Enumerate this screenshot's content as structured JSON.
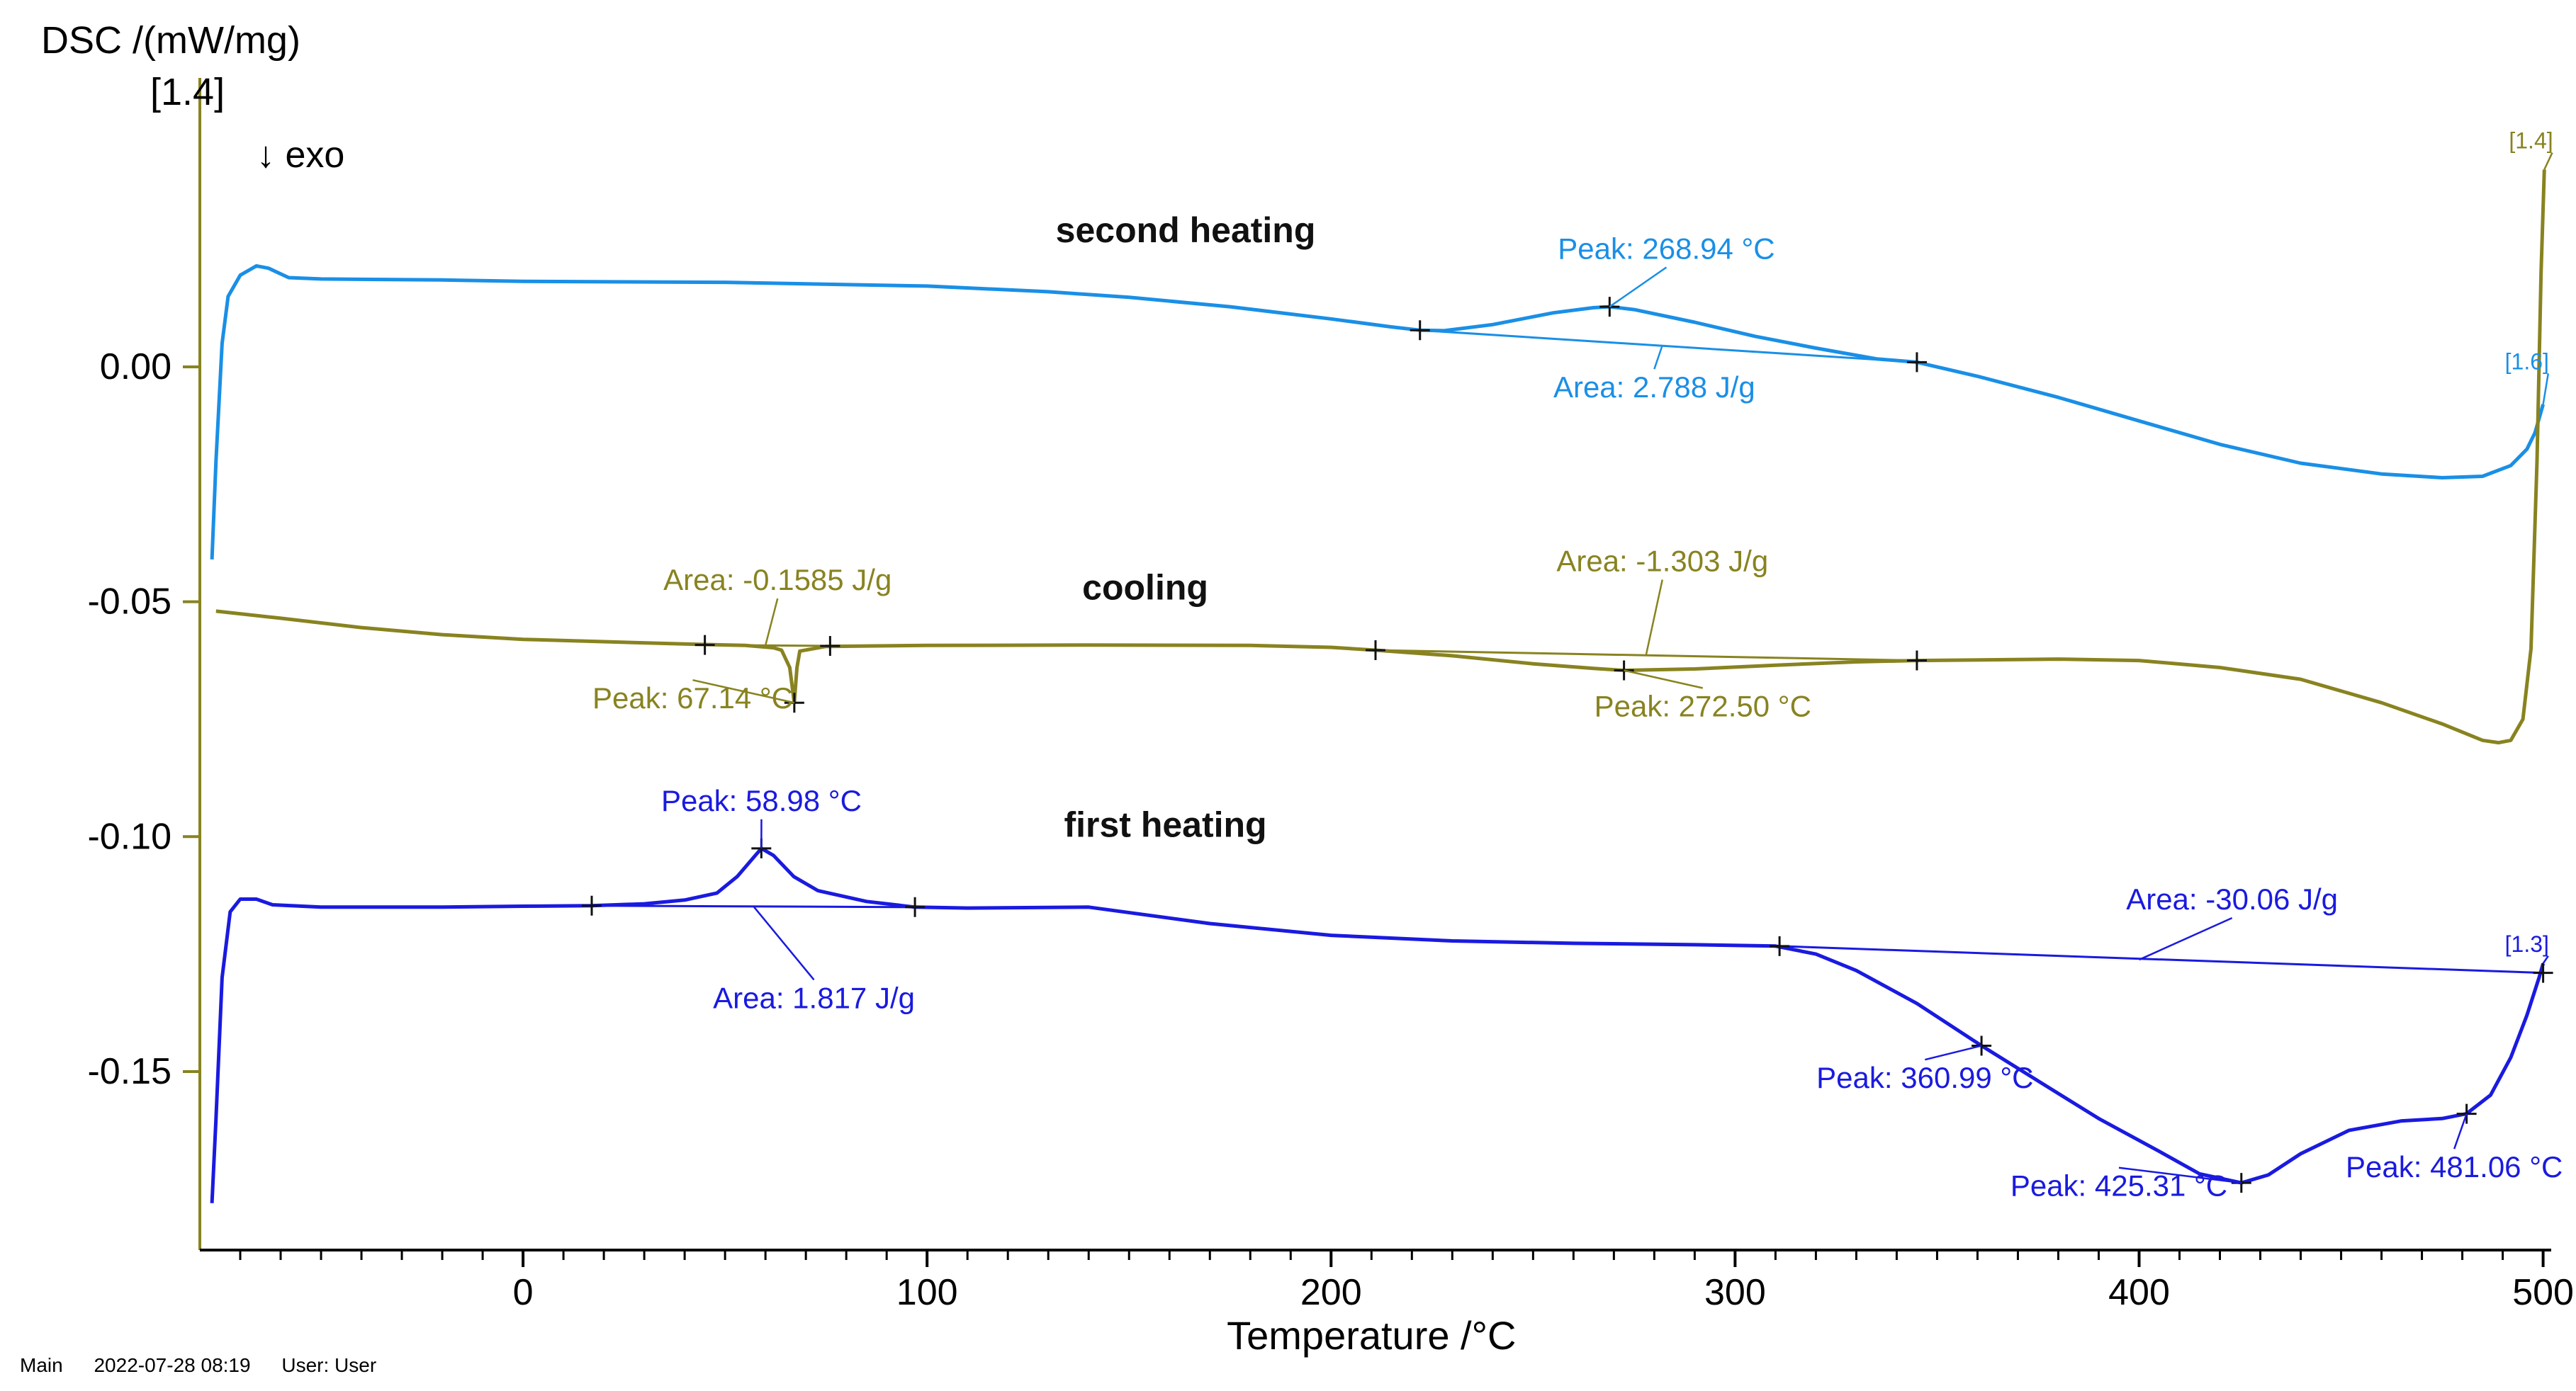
{
  "chart_data": {
    "type": "line",
    "title": "",
    "ylabel": "DSC /(mW/mg)",
    "ylabel_scale": "[1.4]",
    "xlabel": "Temperature /°C",
    "exo_label": "↓  exo",
    "xlim": [
      -80,
      502
    ],
    "ylim": [
      -0.188,
      0.06
    ],
    "xticks": [
      0,
      100,
      200,
      300,
      400,
      500
    ],
    "xtick_labels": [
      "0",
      "100",
      "200",
      "300",
      "400",
      "500"
    ],
    "yticks": [
      0.0,
      -0.05,
      -0.1,
      -0.15
    ],
    "ytick_labels": [
      "0.00",
      "-0.05",
      "-0.10",
      "-0.15"
    ],
    "grid": false,
    "series": [
      {
        "name": "second heating",
        "label_at": [
          164,
          0.0265
        ],
        "color": "#1a8fe6",
        "end_tag": "[1.6]",
        "points": [
          [
            -77,
            -0.041
          ],
          [
            -76,
            -0.02
          ],
          [
            -74.5,
            0.005
          ],
          [
            -73,
            0.015
          ],
          [
            -70,
            0.0195
          ],
          [
            -66,
            0.0215
          ],
          [
            -63,
            0.021
          ],
          [
            -58,
            0.019
          ],
          [
            -50,
            0.0187
          ],
          [
            -20,
            0.0185
          ],
          [
            0,
            0.0182
          ],
          [
            50,
            0.018
          ],
          [
            100,
            0.0172
          ],
          [
            130,
            0.016
          ],
          [
            150,
            0.0148
          ],
          [
            175,
            0.0128
          ],
          [
            200,
            0.0102
          ],
          [
            215,
            0.0085
          ],
          [
            222,
            0.0078
          ],
          [
            228,
            0.0077
          ],
          [
            240,
            0.009
          ],
          [
            255,
            0.0115
          ],
          [
            265,
            0.0126
          ],
          [
            269,
            0.0128
          ],
          [
            275,
            0.0122
          ],
          [
            290,
            0.0095
          ],
          [
            305,
            0.0065
          ],
          [
            320,
            0.004
          ],
          [
            335,
            0.0017
          ],
          [
            345,
            0.001
          ],
          [
            360,
            -0.002
          ],
          [
            380,
            -0.0065
          ],
          [
            400,
            -0.0115
          ],
          [
            420,
            -0.0165
          ],
          [
            440,
            -0.0205
          ],
          [
            460,
            -0.0228
          ],
          [
            475,
            -0.0236
          ],
          [
            485,
            -0.0233
          ],
          [
            492,
            -0.021
          ],
          [
            496,
            -0.0175
          ],
          [
            498,
            -0.014
          ],
          [
            500,
            -0.008
          ]
        ]
      },
      {
        "name": "cooling",
        "label_at": [
          154,
          -0.0495
        ],
        "color": "#888320",
        "end_tag": "[1.4]",
        "points": [
          [
            -76,
            -0.052
          ],
          [
            -60,
            -0.0535
          ],
          [
            -40,
            -0.0555
          ],
          [
            -20,
            -0.057
          ],
          [
            0,
            -0.058
          ],
          [
            20,
            -0.0585
          ],
          [
            40,
            -0.059
          ],
          [
            55,
            -0.0593
          ],
          [
            62,
            -0.0598
          ],
          [
            64,
            -0.0603
          ],
          [
            66,
            -0.064
          ],
          [
            67.14,
            -0.0715
          ],
          [
            67.8,
            -0.064
          ],
          [
            68.5,
            -0.0605
          ],
          [
            75,
            -0.0595
          ],
          [
            100,
            -0.0593
          ],
          [
            140,
            -0.0592
          ],
          [
            180,
            -0.0593
          ],
          [
            200,
            -0.0597
          ],
          [
            211,
            -0.0603
          ],
          [
            230,
            -0.0615
          ],
          [
            250,
            -0.0632
          ],
          [
            265,
            -0.0642
          ],
          [
            272.5,
            -0.0646
          ],
          [
            290,
            -0.0643
          ],
          [
            310,
            -0.0635
          ],
          [
            330,
            -0.0628
          ],
          [
            345,
            -0.0625
          ],
          [
            380,
            -0.0622
          ],
          [
            400,
            -0.0625
          ],
          [
            420,
            -0.064
          ],
          [
            440,
            -0.0665
          ],
          [
            460,
            -0.0715
          ],
          [
            475,
            -0.076
          ],
          [
            485,
            -0.0795
          ],
          [
            489,
            -0.08
          ],
          [
            492,
            -0.0795
          ],
          [
            495,
            -0.075
          ],
          [
            497,
            -0.06
          ],
          [
            498.5,
            -0.02
          ],
          [
            499.5,
            0.02
          ],
          [
            500.3,
            0.042
          ]
        ]
      },
      {
        "name": "first heating",
        "label_at": [
          159,
          -0.1
        ],
        "color": "#1a1ae0",
        "end_tag": "[1.3]",
        "points": [
          [
            -77,
            -0.178
          ],
          [
            -76,
            -0.16
          ],
          [
            -74.5,
            -0.13
          ],
          [
            -72.5,
            -0.116
          ],
          [
            -70,
            -0.1133
          ],
          [
            -66,
            -0.1133
          ],
          [
            -62,
            -0.1145
          ],
          [
            -50,
            -0.115
          ],
          [
            -20,
            -0.115
          ],
          [
            0,
            -0.1148
          ],
          [
            17,
            -0.1147
          ],
          [
            30,
            -0.1143
          ],
          [
            40,
            -0.1135
          ],
          [
            48,
            -0.112
          ],
          [
            53,
            -0.1085
          ],
          [
            57,
            -0.1045
          ],
          [
            59,
            -0.1025
          ],
          [
            62,
            -0.104
          ],
          [
            67,
            -0.1085
          ],
          [
            73,
            -0.1115
          ],
          [
            85,
            -0.1138
          ],
          [
            97,
            -0.115
          ],
          [
            110,
            -0.1152
          ],
          [
            140,
            -0.115
          ],
          [
            170,
            -0.1185
          ],
          [
            200,
            -0.121
          ],
          [
            230,
            -0.1222
          ],
          [
            260,
            -0.1227
          ],
          [
            290,
            -0.123
          ],
          [
            310,
            -0.1233
          ],
          [
            320,
            -0.125
          ],
          [
            330,
            -0.1285
          ],
          [
            345,
            -0.1355
          ],
          [
            361,
            -0.1445
          ],
          [
            375,
            -0.152
          ],
          [
            390,
            -0.16
          ],
          [
            405,
            -0.167
          ],
          [
            415,
            -0.1718
          ],
          [
            425.3,
            -0.1737
          ],
          [
            432,
            -0.172
          ],
          [
            440,
            -0.1675
          ],
          [
            452,
            -0.1625
          ],
          [
            465,
            -0.1605
          ],
          [
            475,
            -0.16
          ],
          [
            481,
            -0.159
          ],
          [
            487,
            -0.155
          ],
          [
            492,
            -0.147
          ],
          [
            496,
            -0.138
          ],
          [
            499,
            -0.13
          ],
          [
            500,
            -0.127
          ]
        ]
      }
    ],
    "baselines": [
      {
        "series": "second heating",
        "from": [
          222,
          0.0078
        ],
        "to": [
          345,
          0.001
        ]
      },
      {
        "series": "cooling",
        "from": [
          45,
          -0.0592
        ],
        "to": [
          76,
          -0.0594
        ]
      },
      {
        "series": "cooling",
        "from": [
          211,
          -0.0603
        ],
        "to": [
          345,
          -0.0625
        ]
      },
      {
        "series": "first heating",
        "from": [
          17,
          -0.1147
        ],
        "to": [
          97,
          -0.115
        ]
      },
      {
        "series": "first heating",
        "from": [
          311,
          -0.1233
        ],
        "to": [
          500,
          -0.129
        ]
      }
    ],
    "markers": [
      {
        "series": "second heating",
        "points": [
          [
            222,
            0.0078
          ],
          [
            268.94,
            0.0128
          ],
          [
            345,
            0.001
          ]
        ]
      },
      {
        "series": "cooling",
        "points": [
          [
            45,
            -0.0592
          ],
          [
            67.14,
            -0.0715
          ],
          [
            76,
            -0.0594
          ],
          [
            211,
            -0.0603
          ],
          [
            272.5,
            -0.0646
          ],
          [
            345,
            -0.0625
          ]
        ]
      },
      {
        "series": "first heating",
        "points": [
          [
            17,
            -0.1147
          ],
          [
            58.98,
            -0.1025
          ],
          [
            97,
            -0.115
          ],
          [
            311,
            -0.1233
          ],
          [
            360.99,
            -0.1445
          ],
          [
            425.31,
            -0.1737
          ],
          [
            481.06,
            -0.159
          ],
          [
            500,
            -0.129
          ]
        ]
      }
    ],
    "annotations": [
      {
        "series": "second heating",
        "text": "Peak: 268.94 °C",
        "label_at": [
          283,
          0.023
        ],
        "target": [
          268.94,
          0.0128
        ]
      },
      {
        "series": "second heating",
        "text": "Area: 2.788 J/g",
        "label_at": [
          280,
          -0.0065
        ],
        "target": [
          282,
          0.0046
        ]
      },
      {
        "series": "cooling",
        "text": "Area: -0.1585 J/g",
        "label_at": [
          63,
          -0.0475
        ],
        "target": [
          60,
          -0.0593
        ]
      },
      {
        "series": "cooling",
        "text": "Peak: 67.14 °C",
        "label_at": [
          42,
          -0.0727
        ],
        "target": [
          67.14,
          -0.0715
        ]
      },
      {
        "series": "cooling",
        "text": "Area: -1.303 J/g",
        "label_at": [
          282,
          -0.0435
        ],
        "target": [
          278,
          -0.0612
        ]
      },
      {
        "series": "cooling",
        "text": "Peak: 272.50 °C",
        "label_at": [
          292,
          -0.0744
        ],
        "target": [
          272.5,
          -0.0646
        ]
      },
      {
        "series": "first heating",
        "text": "Peak: 58.98 °C",
        "label_at": [
          59,
          -0.0945
        ],
        "target": [
          58.98,
          -0.1025
        ]
      },
      {
        "series": "first heating",
        "text": "Area: 1.817 J/g",
        "label_at": [
          72,
          -0.1365
        ],
        "target": [
          57,
          -0.1148
        ]
      },
      {
        "series": "first heating",
        "text": "Area: -30.06 J/g",
        "label_at": [
          423,
          -0.1155
        ],
        "target": [
          400,
          -0.1262
        ]
      },
      {
        "series": "first heating",
        "text": "Peak: 360.99 °C",
        "label_at": [
          347,
          -0.1535
        ],
        "target": [
          360.99,
          -0.1445
        ]
      },
      {
        "series": "first heating",
        "text": "Peak: 425.31 °C",
        "label_at": [
          395,
          -0.1765
        ],
        "target": [
          425.31,
          -0.1737
        ]
      },
      {
        "series": "first heating",
        "text": "Peak: 481.06 °C",
        "label_at": [
          478,
          -0.1725
        ],
        "target": [
          481.06,
          -0.159
        ]
      }
    ],
    "corner_tags": [
      {
        "text": "[1.4]",
        "color": "#888320",
        "label_at": [
          497,
          0.0465
        ],
        "target": [
          500.3,
          0.042
        ]
      },
      {
        "text": "[1.6]",
        "color": "#1a8fe6",
        "label_at": [
          496,
          -0.0005
        ],
        "target": [
          500,
          -0.008
        ]
      },
      {
        "text": "[1.3]",
        "color": "#1a1ae0",
        "label_at": [
          496,
          -0.1245
        ],
        "target": [
          500,
          -0.127
        ]
      }
    ]
  },
  "footer": {
    "segment": "Main",
    "timestamp": "2022-07-28 08:19",
    "user": "User: User"
  }
}
